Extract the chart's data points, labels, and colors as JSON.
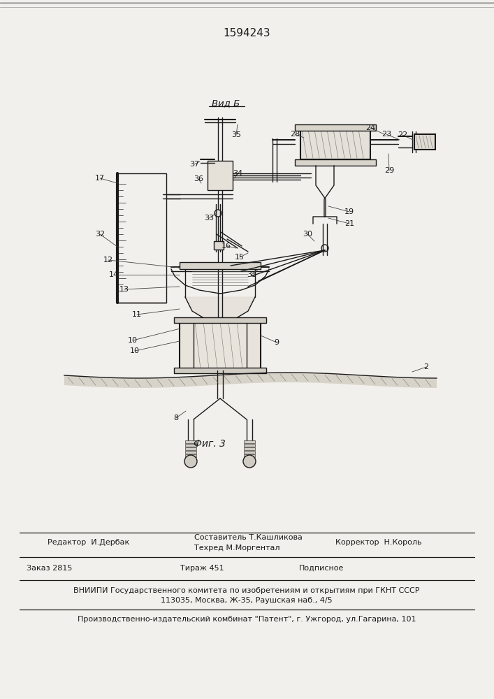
{
  "patent_number": "1594243",
  "figure_label": "Фиг. 3",
  "view_label": "Вид Б",
  "bg_color": "#f2f0ec",
  "footer_line1_left": "Редактор  И.Дербак",
  "footer_line1_center_top": "Составитель Т.Кашликова",
  "footer_line1_center_bot": "Техред М.Моргентал",
  "footer_line1_right": "Корректор  Н.Король",
  "footer_line2_left": "Заказ 2815",
  "footer_line2_center": "Тираж 451",
  "footer_line2_right": "Подписное",
  "footer_line3": "ВНИИПИ Государственного комитета по изобретениям и открытиям при ГКНТ СССР",
  "footer_line4": "113035, Москва, Ж-35, Раушская наб., 4/5",
  "footer_line5": "Производственно-издательский комбинат \"Патент\", г. Ужгород, ул.Гагарина, 101"
}
